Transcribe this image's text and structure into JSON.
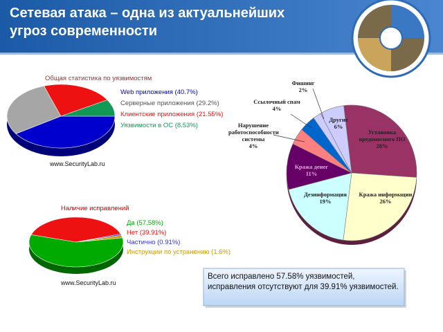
{
  "title_lines": [
    "Сетевая атака – одна из актуальнейших",
    "угроз современности"
  ],
  "note": "Всего исправлено 57.58% уязвимостей, исправления отсутствуют для 39.91% уязвимостей.",
  "chart_data": [
    {
      "type": "pie",
      "title": "Общая статистика по уязвимостям",
      "categories": [
        "Web приложения (40.7%)",
        "Серверные приложения (29.2%)",
        "Клиентские приложения (21.55%)",
        "Уязвимости в ОС (8.53%)"
      ],
      "values": [
        40.7,
        29.2,
        21.55,
        8.53
      ],
      "colors": [
        "#0000cc",
        "#a6a6a6",
        "#ee1111",
        "#119955"
      ],
      "source": "www.SecurityLab.ru"
    },
    {
      "type": "pie",
      "title": "Наличие исправлений",
      "categories": [
        "Да (57.58%)",
        "Нет (39.91%)",
        "Частично (0.91%)",
        "Инструкции по устранению (1.6%)"
      ],
      "values": [
        57.58,
        39.91,
        0.91,
        1.6
      ],
      "colors": [
        "#00aa00",
        "#ee1111",
        "#3333cc",
        "#cc9900"
      ],
      "source": "www.SecurityLab.ru"
    },
    {
      "type": "pie",
      "categories": [
        "Установка вредоносного ПО",
        "Кража информации",
        "Дезинформация",
        "Кража денег",
        "Нарушение работоспособности системы",
        "Ссылочный спам",
        "Фишинг",
        "Другие"
      ],
      "values": [
        28,
        26,
        19,
        11,
        4,
        4,
        2,
        6
      ],
      "value_labels": [
        "28%",
        "26%",
        "19%",
        "11%",
        "4%",
        "4%",
        "2%",
        "6%"
      ],
      "colors": [
        "#993366",
        "#ffffcc",
        "#ccffff",
        "#660066",
        "#ff8080",
        "#0066cc",
        "#ccccff",
        "#ccccff"
      ]
    }
  ]
}
